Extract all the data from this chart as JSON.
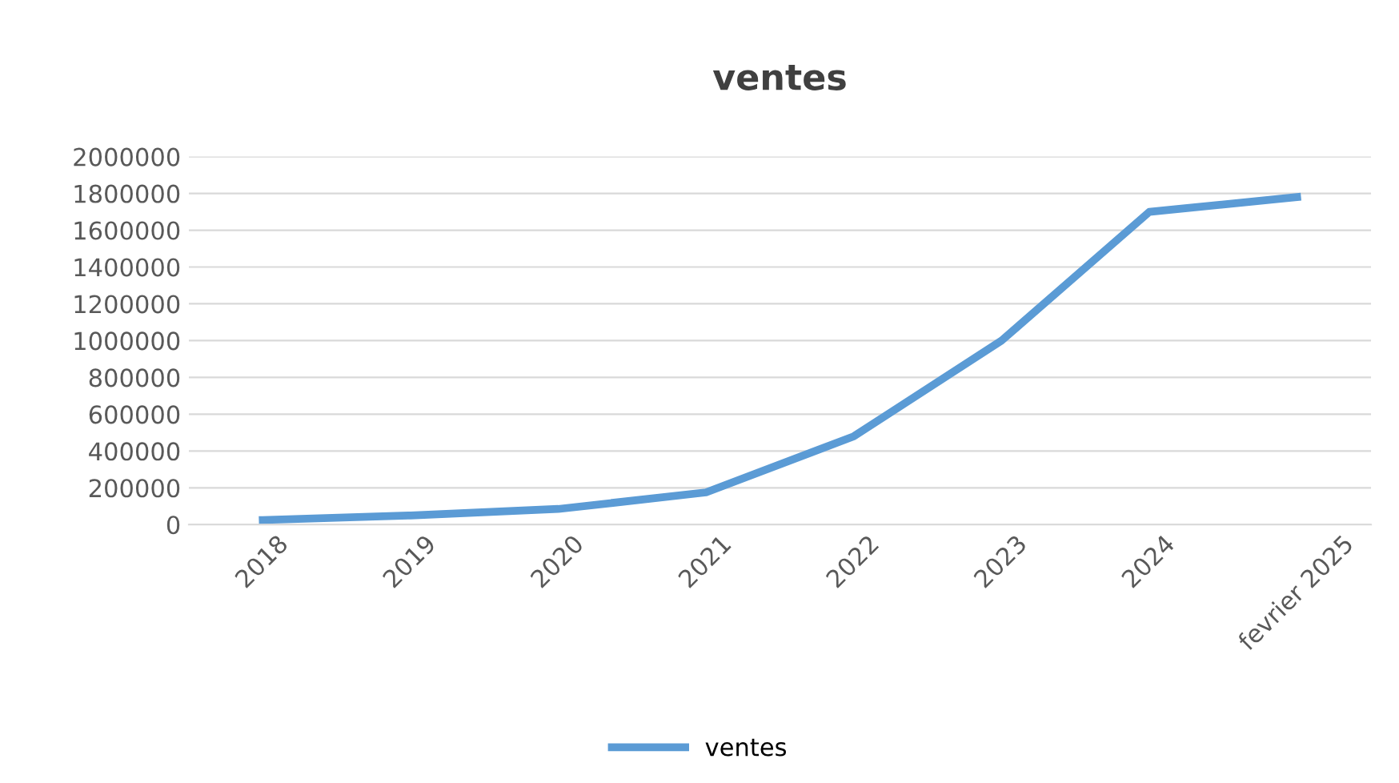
{
  "chart_data": {
    "type": "line",
    "title": "ventes",
    "categories": [
      "2018",
      "2019",
      "2020",
      "2021",
      "2022",
      "2023",
      "2024",
      "fevrier 2025"
    ],
    "series": [
      {
        "name": "ventes",
        "color": "#5b9bd5",
        "values": [
          25000,
          50000,
          85000,
          175000,
          480000,
          1000000,
          1700000,
          1780000
        ]
      }
    ],
    "ylim": [
      0,
      2000000
    ],
    "yticks": [
      0,
      200000,
      400000,
      600000,
      800000,
      1000000,
      1200000,
      1400000,
      1600000,
      1800000,
      2000000
    ],
    "grid": "y",
    "legend": "bottom",
    "marker": "none",
    "line_style": "solid"
  }
}
